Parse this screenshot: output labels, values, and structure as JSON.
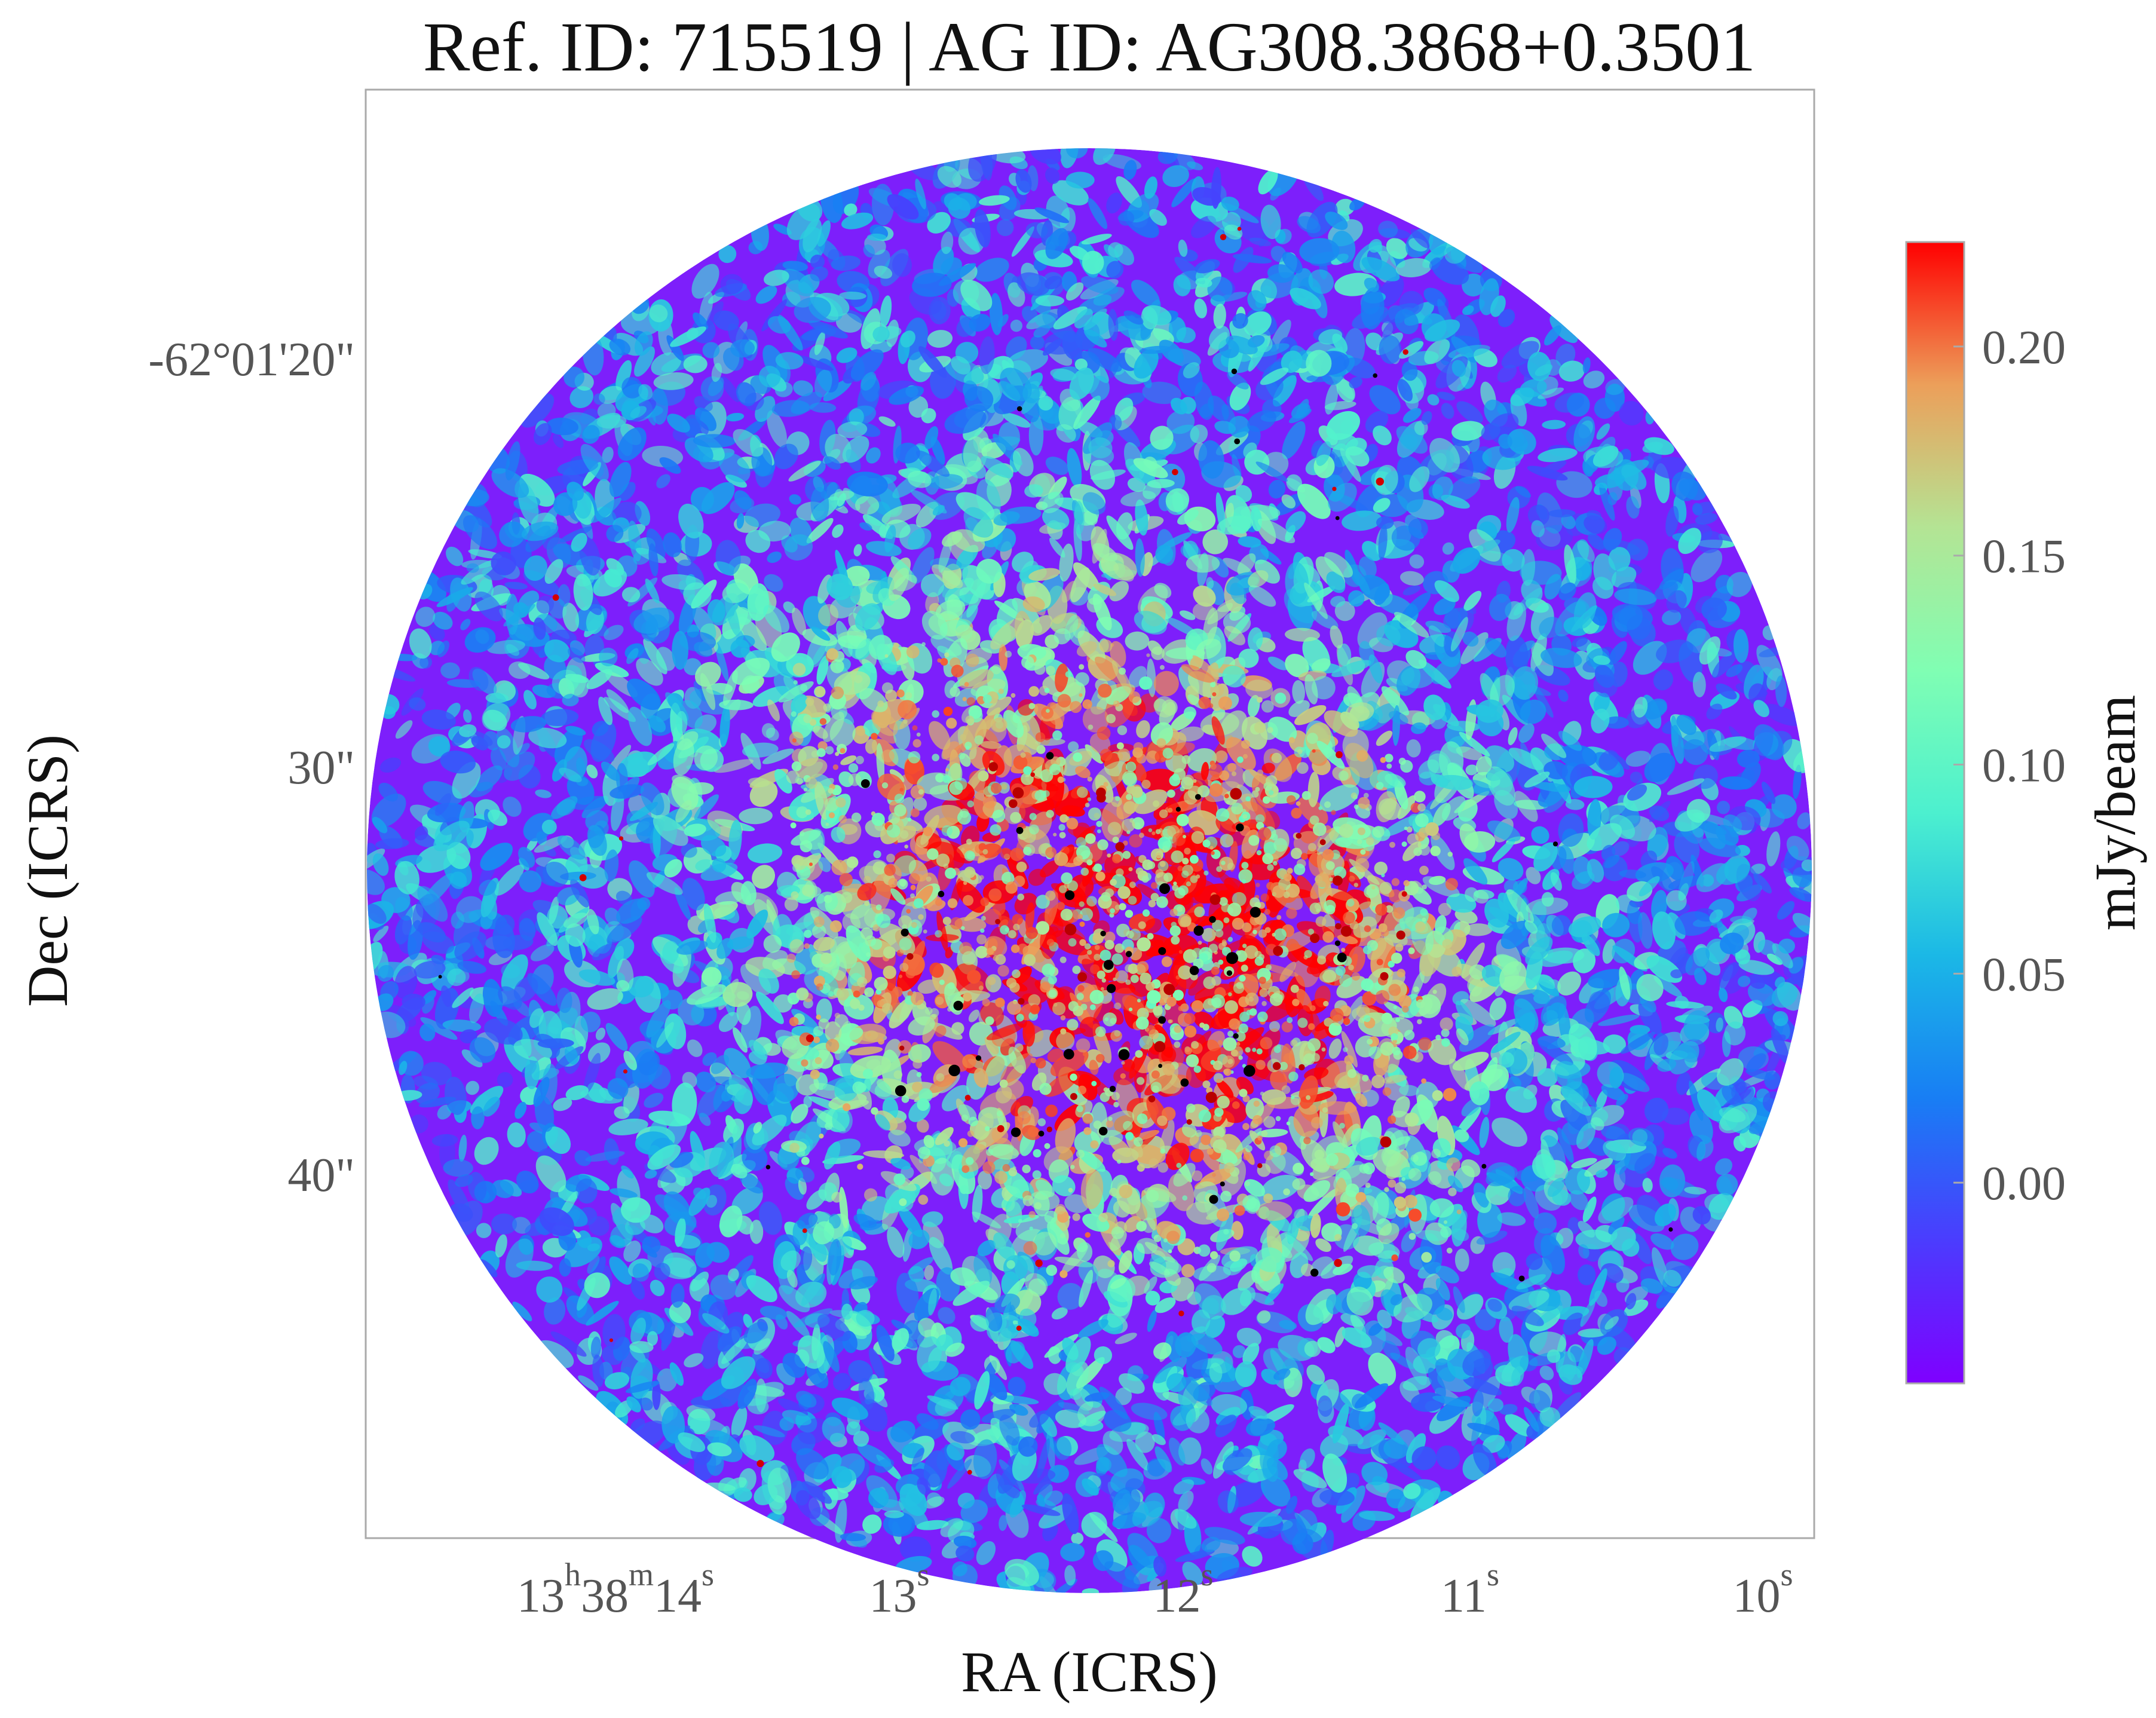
{
  "chart_data": {
    "type": "heatmap",
    "title": "Ref. ID: 715519 | AG ID: AG308.3868+0.3501",
    "xlabel": "RA (ICRS)",
    "ylabel": "Dec (ICRS)",
    "x_ticks": [
      {
        "value": "13h38m14s",
        "parts": [
          [
            "13",
            ""
          ],
          [
            "h",
            "sup"
          ],
          [
            "38",
            ""
          ],
          [
            "m",
            "sup"
          ],
          [
            "14",
            ""
          ],
          [
            "s",
            "sup"
          ]
        ]
      },
      {
        "value": "13s",
        "parts": [
          [
            "13",
            ""
          ],
          [
            "s",
            "sup"
          ]
        ]
      },
      {
        "value": "12s",
        "parts": [
          [
            "12",
            ""
          ],
          [
            "s",
            "sup"
          ]
        ]
      },
      {
        "value": "11s",
        "parts": [
          [
            "11",
            ""
          ],
          [
            "s",
            "sup"
          ]
        ]
      },
      {
        "value": "10s",
        "parts": [
          [
            "10",
            ""
          ],
          [
            "s",
            "sup"
          ]
        ]
      }
    ],
    "y_ticks": [
      "-62°01'20\"",
      "30\"",
      "40\""
    ],
    "colorbar": {
      "label": "mJy/beam",
      "colormap": "rainbow",
      "vmin": -0.048,
      "vmax": 0.225,
      "ticks": [
        0.0,
        0.05,
        0.1,
        0.15,
        0.2
      ],
      "tick_labels": [
        "0.00",
        "0.05",
        "0.10",
        "0.15",
        "0.20"
      ]
    },
    "grid": false,
    "image": {
      "footprint": "circle",
      "background_level": "low (purple-blue)",
      "emission_region": "central, concentrated below and right of centre",
      "peak_color": "#000000",
      "peak_note": "compact peaks shown as dark red/black spots"
    },
    "colors": {
      "frame": "#aaaaaa",
      "low": "#7a00ff",
      "high": "#ff0000"
    }
  }
}
